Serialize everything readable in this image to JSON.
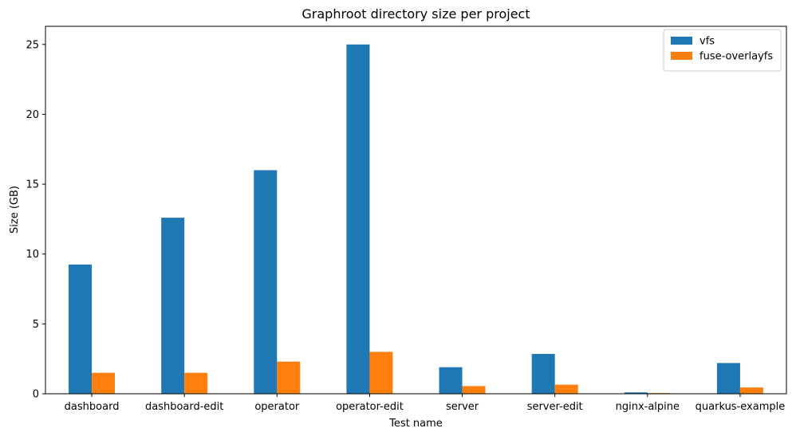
{
  "chart_data": {
    "type": "bar",
    "title": "Graphroot directory size per project",
    "xlabel": "Test name",
    "ylabel": "Size (GB)",
    "ylim": [
      0,
      26.3
    ],
    "yticks": [
      0,
      5,
      10,
      15,
      20,
      25
    ],
    "grid": false,
    "legend_position": "top-right",
    "categories": [
      "dashboard",
      "dashboard-edit",
      "operator",
      "operator-edit",
      "server",
      "server-edit",
      "nginx-alpine",
      "quarkus-example"
    ],
    "series": [
      {
        "name": "vfs",
        "color": "#1f77b4",
        "values": [
          9.25,
          12.6,
          16.0,
          25.0,
          1.9,
          2.85,
          0.1,
          2.2
        ]
      },
      {
        "name": "fuse-overlayfs",
        "color": "#ff7f0e",
        "values": [
          1.5,
          1.5,
          2.3,
          3.0,
          0.55,
          0.65,
          0.05,
          0.45
        ]
      }
    ]
  }
}
